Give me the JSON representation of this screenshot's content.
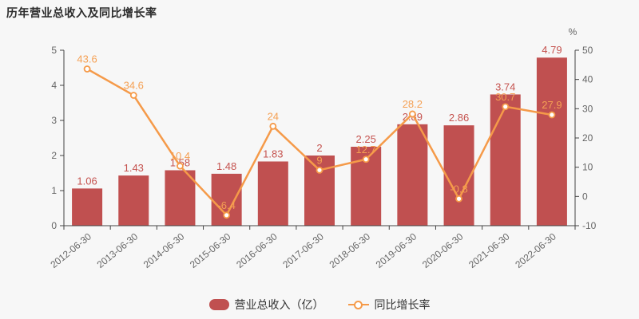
{
  "title": "历年营业总收入及同比增长率",
  "colors": {
    "background": "#f7f7f7",
    "bar": "#c05050",
    "bar_label": "#c5534f",
    "line": "#f59a49",
    "line_label": "#f5a053",
    "axis_line": "#444444",
    "axis_text": "#666666",
    "title_text": "#2b2b2b",
    "legend_text": "#333333"
  },
  "legend": {
    "bar_label": "营业总收入（亿）",
    "line_label": "同比增长率"
  },
  "chart_data": {
    "type": "bar+line combo",
    "categories": [
      "2012-06-30",
      "2013-06-30",
      "2014-06-30",
      "2015-06-30",
      "2016-06-30",
      "2017-06-30",
      "2018-06-30",
      "2019-06-30",
      "2020-06-30",
      "2021-06-30",
      "2022-06-30"
    ],
    "series": [
      {
        "name": "营业总收入（亿）",
        "type": "bar",
        "axis": "left",
        "values": [
          1.06,
          1.43,
          1.58,
          1.48,
          1.83,
          2.0,
          2.25,
          2.89,
          2.86,
          3.74,
          4.79
        ],
        "labels": [
          "1.06",
          "1.43",
          "1.58",
          "1.48",
          "1.83",
          "2",
          "2.25",
          "2.89",
          "2.86",
          "3.74",
          "4.79"
        ]
      },
      {
        "name": "同比增长率",
        "type": "line",
        "axis": "right",
        "values": [
          43.6,
          34.6,
          10.4,
          -6.4,
          24,
          9,
          12.7,
          28.2,
          -0.8,
          30.7,
          27.9
        ],
        "labels": [
          "43.6",
          "34.6",
          "10.4",
          "-6.4",
          "24",
          "9",
          "12.7",
          "28.2",
          "-0.8",
          "30.7",
          "27.9"
        ]
      }
    ],
    "left_axis": {
      "range": [
        0,
        5
      ],
      "ticks": [
        0,
        1,
        2,
        3,
        4,
        5
      ]
    },
    "right_axis": {
      "range": [
        -10,
        50
      ],
      "ticks": [
        -10,
        0,
        10,
        20,
        30,
        40,
        50
      ],
      "unit": "%"
    },
    "grid": false,
    "legend_position": "bottom"
  }
}
